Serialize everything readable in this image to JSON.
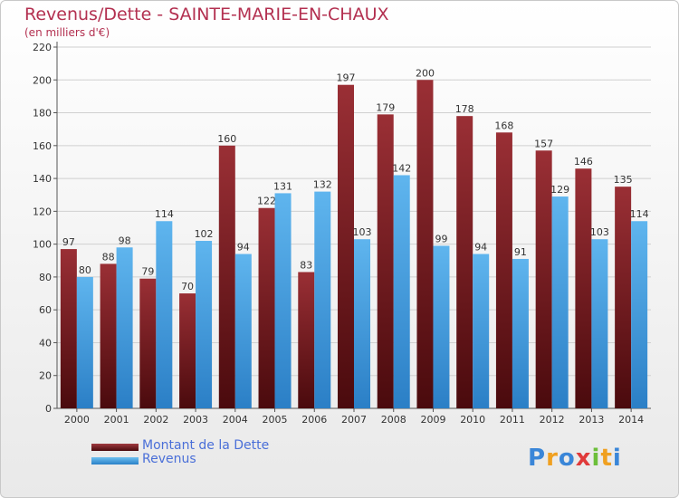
{
  "chart_data": {
    "type": "bar",
    "title": "Revenus/Dette - SAINTE-MARIE-EN-CHAUX",
    "subtitle": "(en milliers d'€)",
    "categories": [
      "2000",
      "2001",
      "2002",
      "2003",
      "2004",
      "2005",
      "2006",
      "2007",
      "2008",
      "2009",
      "2010",
      "2011",
      "2012",
      "2013",
      "2014"
    ],
    "series": [
      {
        "name": "Montant de la Dette",
        "color": "#7a1a1f",
        "values": [
          97,
          88,
          79,
          70,
          160,
          122,
          83,
          197,
          179,
          200,
          178,
          168,
          157,
          146,
          135
        ]
      },
      {
        "name": "Revenus",
        "color": "#3d9de0",
        "values": [
          80,
          98,
          114,
          102,
          94,
          131,
          132,
          103,
          142,
          99,
          94,
          91,
          129,
          103,
          114
        ]
      }
    ],
    "ylim": [
      0,
      220
    ],
    "yticks": [
      0,
      20,
      40,
      60,
      80,
      100,
      120,
      140,
      160,
      180,
      200,
      220
    ],
    "grid": true,
    "legend_position": "bottom-left"
  },
  "logo": {
    "letters": [
      "P",
      "r",
      "o",
      "x",
      "i",
      "t",
      "i"
    ],
    "colors": [
      "#3a86d8",
      "#f0a020",
      "#3a86d8",
      "#e03a3a",
      "#6cbf3a",
      "#f0a020",
      "#3a86d8"
    ]
  }
}
